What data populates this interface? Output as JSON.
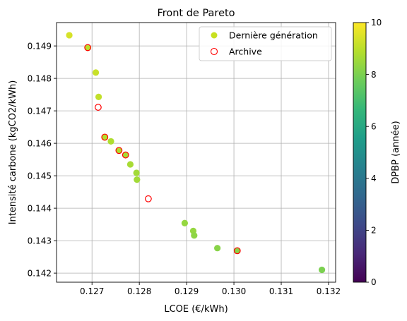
{
  "chart_data": {
    "type": "scatter",
    "title": "Front de Pareto",
    "xlabel": "LCOE (€/kWh)",
    "ylabel": "Intensité carbone (kgCO2/kWh)",
    "xlim": [
      0.12625,
      0.13215
    ],
    "ylim": [
      0.14172,
      0.14972
    ],
    "xticks": [
      0.127,
      0.128,
      0.129,
      0.13,
      0.131,
      0.132
    ],
    "xtick_labels": [
      "0.127",
      "0.128",
      "0.129",
      "0.130",
      "0.131",
      "0.132"
    ],
    "yticks": [
      0.142,
      0.143,
      0.144,
      0.145,
      0.146,
      0.147,
      0.148,
      0.149
    ],
    "ytick_labels": [
      "0.142",
      "0.143",
      "0.144",
      "0.145",
      "0.146",
      "0.147",
      "0.148",
      "0.149"
    ],
    "grid": true,
    "legend": {
      "position": "upper right",
      "entries": [
        "Dernière génération",
        "Archive"
      ]
    },
    "colorbar": {
      "label": "DPBP (année)",
      "colormap": "viridis",
      "range": [
        0,
        10
      ],
      "ticks": [
        0,
        2,
        4,
        6,
        8,
        10
      ],
      "tick_labels": [
        "0",
        "2",
        "4",
        "6",
        "8",
        "10"
      ]
    },
    "series": [
      {
        "name": "Dernière génération",
        "marker": "filled-circle",
        "color_by": "DPBP",
        "points": [
          {
            "x": 0.12652,
            "y": 0.14933,
            "c": 9.4
          },
          {
            "x": 0.12691,
            "y": 0.14894,
            "c": 9.0
          },
          {
            "x": 0.12708,
            "y": 0.14818,
            "c": 9.2
          },
          {
            "x": 0.12714,
            "y": 0.14743,
            "c": 9.1
          },
          {
            "x": 0.12727,
            "y": 0.14618,
            "c": 8.9
          },
          {
            "x": 0.1274,
            "y": 0.14606,
            "c": 8.8
          },
          {
            "x": 0.12757,
            "y": 0.14578,
            "c": 8.8
          },
          {
            "x": 0.12771,
            "y": 0.14564,
            "c": 8.7
          },
          {
            "x": 0.12781,
            "y": 0.14535,
            "c": 8.7
          },
          {
            "x": 0.12794,
            "y": 0.14509,
            "c": 8.6
          },
          {
            "x": 0.12795,
            "y": 0.14488,
            "c": 8.6
          },
          {
            "x": 0.12896,
            "y": 0.14354,
            "c": 8.4
          },
          {
            "x": 0.12914,
            "y": 0.1433,
            "c": 8.4
          },
          {
            "x": 0.12916,
            "y": 0.14316,
            "c": 8.3
          },
          {
            "x": 0.12965,
            "y": 0.14277,
            "c": 8.2
          },
          {
            "x": 0.13007,
            "y": 0.14269,
            "c": 8.2
          },
          {
            "x": 0.13186,
            "y": 0.1421,
            "c": 8.0
          }
        ]
      },
      {
        "name": "Archive",
        "marker": "open-circle",
        "color": "#ff0000",
        "points": [
          {
            "x": 0.12691,
            "y": 0.14895
          },
          {
            "x": 0.12713,
            "y": 0.14711
          },
          {
            "x": 0.12727,
            "y": 0.14619
          },
          {
            "x": 0.12757,
            "y": 0.14578
          },
          {
            "x": 0.12771,
            "y": 0.14564
          },
          {
            "x": 0.12819,
            "y": 0.14429
          },
          {
            "x": 0.13007,
            "y": 0.14269
          }
        ]
      }
    ]
  }
}
